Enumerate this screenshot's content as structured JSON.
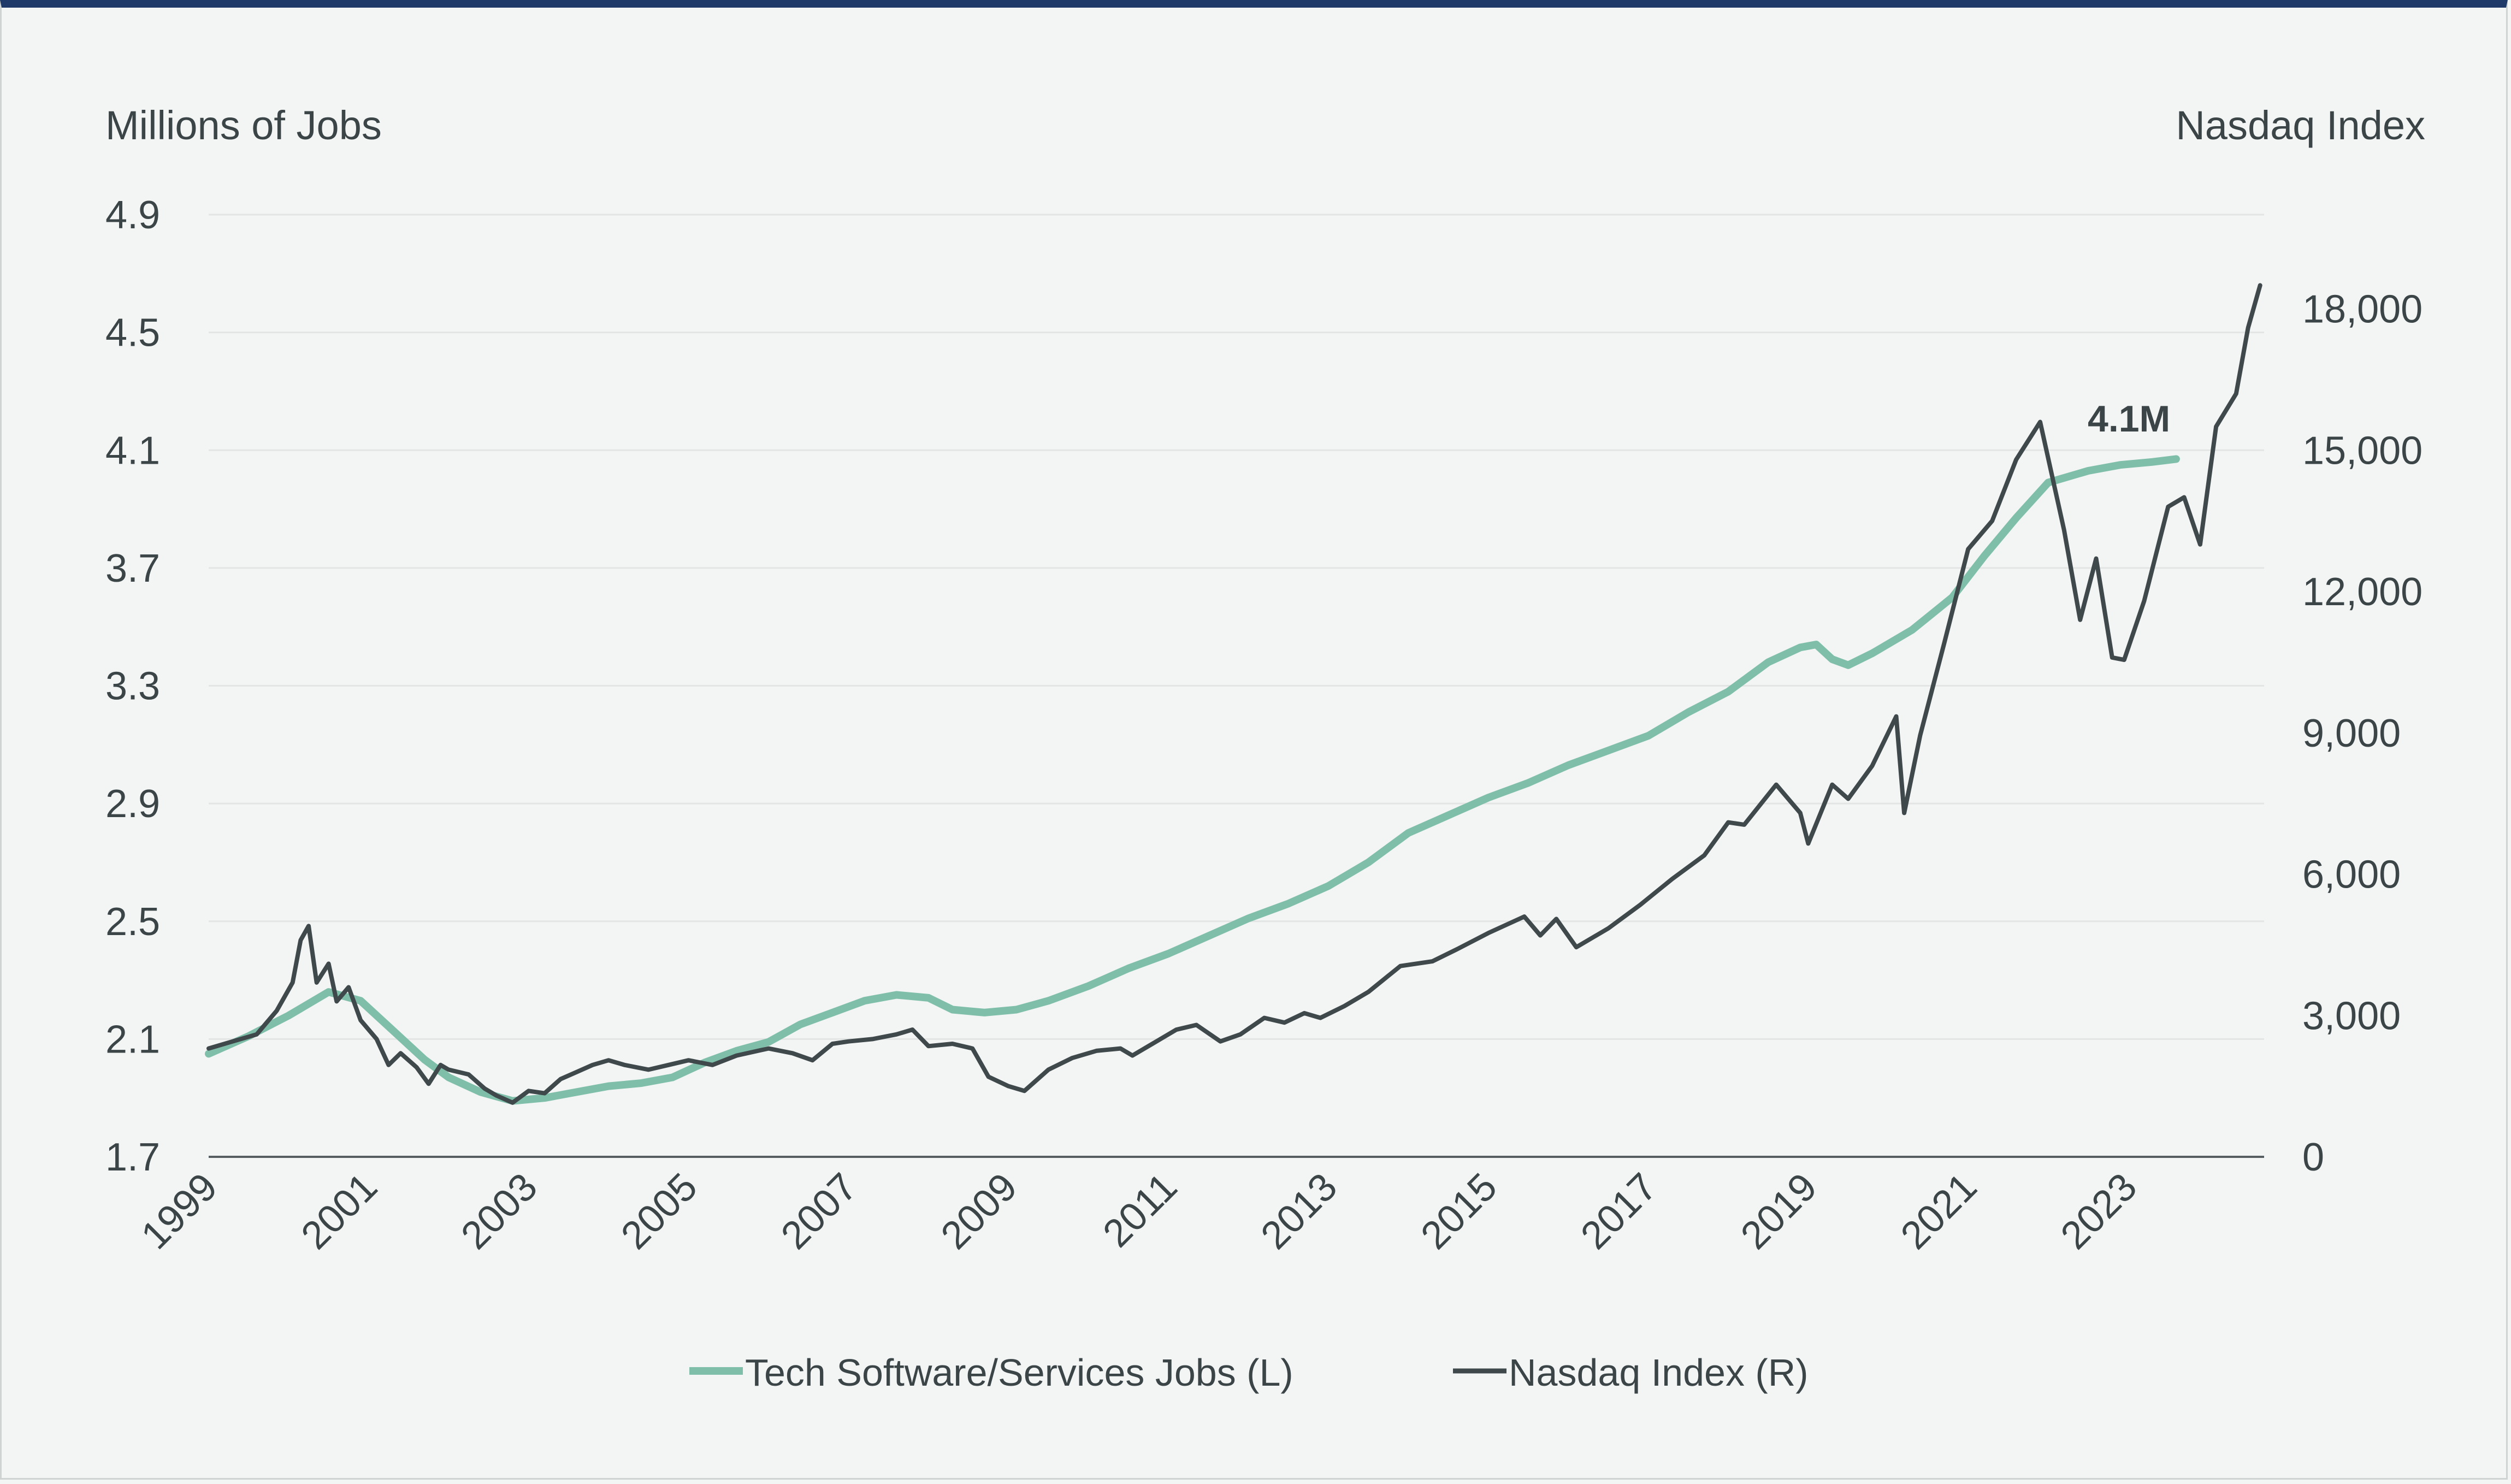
{
  "chart_data": {
    "type": "line",
    "title": "",
    "ylabel_left": "Millions of Jobs",
    "ylabel_right": "Nasdaq Index",
    "x_ticks": [
      "1999",
      "2001",
      "2003",
      "2005",
      "2007",
      "2009",
      "2011",
      "2013",
      "2015",
      "2017",
      "2019",
      "2021",
      "2023"
    ],
    "x_range": [
      1999.0,
      2024.7
    ],
    "y_left": {
      "range": [
        1.7,
        4.9
      ],
      "ticks": [
        "1.7",
        "2.1",
        "2.5",
        "2.9",
        "3.3",
        "3.7",
        "4.1",
        "4.5",
        "4.9"
      ]
    },
    "y_right": {
      "range": [
        0,
        20000
      ],
      "ticks": [
        "0",
        "3,000",
        "6,000",
        "9,000",
        "12,000",
        "15,000",
        "18,000"
      ]
    },
    "annotation": "4.1M",
    "colors": {
      "jobs": "#7fbfaa",
      "nasdaq": "#3f484b",
      "grid": "#e2e5e4",
      "axis": "#555d60",
      "topbar": "#1f3a68"
    },
    "legend": [
      {
        "label": "Tech Software/Services Jobs (L)"
      },
      {
        "label": "Nasdaq Index (R)"
      }
    ],
    "series": [
      {
        "name": "Tech Software/Services Jobs (L)",
        "axis": "left",
        "points": [
          [
            1999.0,
            2.05
          ],
          [
            1999.5,
            2.11
          ],
          [
            2000.0,
            2.18
          ],
          [
            2000.5,
            2.26
          ],
          [
            2000.9,
            2.23
          ],
          [
            2001.3,
            2.13
          ],
          [
            2001.7,
            2.03
          ],
          [
            2002.0,
            1.97
          ],
          [
            2002.4,
            1.92
          ],
          [
            2002.8,
            1.89
          ],
          [
            2003.2,
            1.9
          ],
          [
            2003.6,
            1.92
          ],
          [
            2004.0,
            1.94
          ],
          [
            2004.4,
            1.95
          ],
          [
            2004.8,
            1.97
          ],
          [
            2005.2,
            2.02
          ],
          [
            2005.6,
            2.06
          ],
          [
            2006.0,
            2.09
          ],
          [
            2006.4,
            2.15
          ],
          [
            2006.8,
            2.19
          ],
          [
            2007.2,
            2.23
          ],
          [
            2007.6,
            2.25
          ],
          [
            2008.0,
            2.24
          ],
          [
            2008.3,
            2.2
          ],
          [
            2008.7,
            2.19
          ],
          [
            2009.1,
            2.2
          ],
          [
            2009.5,
            2.23
          ],
          [
            2010.0,
            2.28
          ],
          [
            2010.5,
            2.34
          ],
          [
            2011.0,
            2.39
          ],
          [
            2011.5,
            2.45
          ],
          [
            2012.0,
            2.51
          ],
          [
            2012.5,
            2.56
          ],
          [
            2013.0,
            2.62
          ],
          [
            2013.5,
            2.7
          ],
          [
            2014.0,
            2.8
          ],
          [
            2014.5,
            2.86
          ],
          [
            2015.0,
            2.92
          ],
          [
            2015.5,
            2.97
          ],
          [
            2016.0,
            3.03
          ],
          [
            2016.5,
            3.08
          ],
          [
            2017.0,
            3.13
          ],
          [
            2017.5,
            3.21
          ],
          [
            2018.0,
            3.28
          ],
          [
            2018.5,
            3.38
          ],
          [
            2018.9,
            3.43
          ],
          [
            2019.1,
            3.44
          ],
          [
            2019.3,
            3.39
          ],
          [
            2019.5,
            3.37
          ],
          [
            2019.8,
            3.41
          ],
          [
            2020.3,
            3.49
          ],
          [
            2020.8,
            3.6
          ],
          [
            2021.2,
            3.74
          ],
          [
            2021.6,
            3.87
          ],
          [
            2022.0,
            3.99
          ],
          [
            2022.5,
            4.03
          ],
          [
            2022.9,
            4.05
          ],
          [
            2023.3,
            4.06
          ],
          [
            2023.6,
            4.07
          ]
        ]
      },
      {
        "name": "Nasdaq Index (R)",
        "axis": "right",
        "points": [
          [
            1999.0,
            2300
          ],
          [
            1999.3,
            2450
          ],
          [
            1999.6,
            2600
          ],
          [
            1999.85,
            3100
          ],
          [
            2000.05,
            3700
          ],
          [
            2000.15,
            4600
          ],
          [
            2000.25,
            4900
          ],
          [
            2000.35,
            3700
          ],
          [
            2000.5,
            4100
          ],
          [
            2000.6,
            3300
          ],
          [
            2000.75,
            3600
          ],
          [
            2000.9,
            2900
          ],
          [
            2001.1,
            2500
          ],
          [
            2001.25,
            1950
          ],
          [
            2001.4,
            2200
          ],
          [
            2001.6,
            1900
          ],
          [
            2001.75,
            1550
          ],
          [
            2001.9,
            1950
          ],
          [
            2002.0,
            1850
          ],
          [
            2002.25,
            1750
          ],
          [
            2002.45,
            1450
          ],
          [
            2002.6,
            1300
          ],
          [
            2002.8,
            1150
          ],
          [
            2003.0,
            1400
          ],
          [
            2003.2,
            1350
          ],
          [
            2003.4,
            1650
          ],
          [
            2003.6,
            1800
          ],
          [
            2003.8,
            1950
          ],
          [
            2004.0,
            2050
          ],
          [
            2004.2,
            1950
          ],
          [
            2004.5,
            1850
          ],
          [
            2004.75,
            1950
          ],
          [
            2005.0,
            2050
          ],
          [
            2005.3,
            1950
          ],
          [
            2005.6,
            2150
          ],
          [
            2006.0,
            2300
          ],
          [
            2006.3,
            2200
          ],
          [
            2006.55,
            2050
          ],
          [
            2006.8,
            2400
          ],
          [
            2007.0,
            2450
          ],
          [
            2007.3,
            2500
          ],
          [
            2007.6,
            2600
          ],
          [
            2007.8,
            2700
          ],
          [
            2008.0,
            2350
          ],
          [
            2008.3,
            2400
          ],
          [
            2008.55,
            2300
          ],
          [
            2008.75,
            1700
          ],
          [
            2009.0,
            1500
          ],
          [
            2009.2,
            1400
          ],
          [
            2009.5,
            1850
          ],
          [
            2009.8,
            2100
          ],
          [
            2010.1,
            2250
          ],
          [
            2010.4,
            2300
          ],
          [
            2010.55,
            2150
          ],
          [
            2010.8,
            2400
          ],
          [
            2011.1,
            2700
          ],
          [
            2011.35,
            2800
          ],
          [
            2011.65,
            2450
          ],
          [
            2011.9,
            2600
          ],
          [
            2012.2,
            2950
          ],
          [
            2012.45,
            2850
          ],
          [
            2012.7,
            3050
          ],
          [
            2012.9,
            2950
          ],
          [
            2013.2,
            3200
          ],
          [
            2013.5,
            3500
          ],
          [
            2013.9,
            4050
          ],
          [
            2014.3,
            4150
          ],
          [
            2014.6,
            4400
          ],
          [
            2015.0,
            4750
          ],
          [
            2015.45,
            5100
          ],
          [
            2015.65,
            4700
          ],
          [
            2015.85,
            5050
          ],
          [
            2016.1,
            4450
          ],
          [
            2016.5,
            4850
          ],
          [
            2016.9,
            5350
          ],
          [
            2017.3,
            5900
          ],
          [
            2017.7,
            6400
          ],
          [
            2018.0,
            7100
          ],
          [
            2018.2,
            7050
          ],
          [
            2018.6,
            7900
          ],
          [
            2018.9,
            7300
          ],
          [
            2019.0,
            6650
          ],
          [
            2019.3,
            7900
          ],
          [
            2019.5,
            7600
          ],
          [
            2019.8,
            8300
          ],
          [
            2020.1,
            9350
          ],
          [
            2020.2,
            7300
          ],
          [
            2020.4,
            8950
          ],
          [
            2020.7,
            10900
          ],
          [
            2021.0,
            12900
          ],
          [
            2021.3,
            13500
          ],
          [
            2021.6,
            14800
          ],
          [
            2021.9,
            15600
          ],
          [
            2022.2,
            13300
          ],
          [
            2022.4,
            11400
          ],
          [
            2022.6,
            12700
          ],
          [
            2022.8,
            10600
          ],
          [
            2022.95,
            10550
          ],
          [
            2023.2,
            11800
          ],
          [
            2023.5,
            13800
          ],
          [
            2023.7,
            14000
          ],
          [
            2023.9,
            13000
          ],
          [
            2024.1,
            15500
          ],
          [
            2024.35,
            16200
          ],
          [
            2024.5,
            17600
          ],
          [
            2024.65,
            18500
          ]
        ]
      }
    ]
  }
}
